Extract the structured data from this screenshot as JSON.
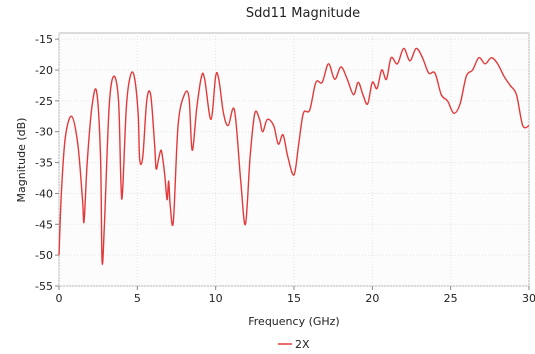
{
  "chart_data": {
    "type": "line",
    "title": "Sdd11 Magnitude",
    "xlabel": "Frequency (GHz)",
    "ylabel": "Magnitude (dB)",
    "xlim": [
      0,
      30
    ],
    "ylim": [
      -55,
      -14
    ],
    "xticks": [
      0,
      5,
      10,
      15,
      20,
      25,
      30
    ],
    "yticks": [
      -15,
      -20,
      -25,
      -30,
      -35,
      -40,
      -45,
      -50,
      -55
    ],
    "grid": true,
    "legend_position": "bottom-center",
    "series": [
      {
        "name": "2X",
        "color": "#e23a3a",
        "x": [
          0.0,
          0.15,
          0.4,
          0.8,
          1.2,
          1.5,
          1.6,
          1.8,
          2.1,
          2.4,
          2.65,
          2.75,
          2.9,
          3.2,
          3.5,
          3.8,
          3.95,
          4.05,
          4.3,
          4.55,
          4.8,
          5.05,
          5.15,
          5.35,
          5.6,
          5.85,
          6.1,
          6.2,
          6.35,
          6.5,
          6.6,
          6.75,
          6.9,
          7.0,
          7.1,
          7.3,
          7.6,
          8.0,
          8.3,
          8.5,
          8.8,
          9.1,
          9.3,
          9.7,
          10.0,
          10.2,
          10.5,
          10.8,
          11.2,
          11.6,
          11.9,
          12.2,
          12.5,
          12.8,
          13.0,
          13.3,
          13.7,
          14.0,
          14.3,
          14.6,
          15.0,
          15.3,
          15.6,
          16.0,
          16.4,
          16.8,
          17.2,
          17.6,
          18.0,
          18.4,
          18.8,
          19.1,
          19.4,
          19.7,
          20.0,
          20.3,
          20.6,
          20.9,
          21.2,
          21.6,
          22.0,
          22.4,
          22.8,
          23.2,
          23.6,
          24.0,
          24.4,
          24.8,
          25.2,
          25.6,
          26.0,
          26.4,
          26.8,
          27.2,
          27.6,
          28.0,
          28.4,
          28.8,
          29.2,
          29.6,
          30.0
        ],
        "y": [
          -50,
          -40,
          -31,
          -27.5,
          -32,
          -41,
          -44.5,
          -35,
          -26,
          -23.5,
          -34,
          -51,
          -45,
          -26,
          -21,
          -25,
          -38,
          -40,
          -26,
          -21,
          -21,
          -27,
          -34.5,
          -34,
          -25,
          -24,
          -32,
          -36,
          -34.5,
          -33,
          -34,
          -37,
          -41,
          -38,
          -42,
          -44.5,
          -29,
          -24,
          -24.5,
          -33,
          -26,
          -21,
          -21.5,
          -28,
          -21,
          -21.5,
          -27,
          -29,
          -26.5,
          -38,
          -45,
          -34,
          -27,
          -28,
          -30,
          -28,
          -29,
          -32,
          -30.5,
          -34,
          -37,
          -32,
          -27,
          -26.5,
          -22,
          -22,
          -19,
          -21.5,
          -19.5,
          -21.5,
          -24,
          -22,
          -24,
          -25.5,
          -22,
          -23,
          -20,
          -21.5,
          -18,
          -19,
          -16.5,
          -18.5,
          -16.5,
          -18,
          -20.5,
          -20.5,
          -24,
          -25,
          -27,
          -25.5,
          -21,
          -20,
          -18,
          -19,
          -18,
          -19,
          -21,
          -22.5,
          -24,
          -29,
          -29
        ]
      }
    ]
  }
}
